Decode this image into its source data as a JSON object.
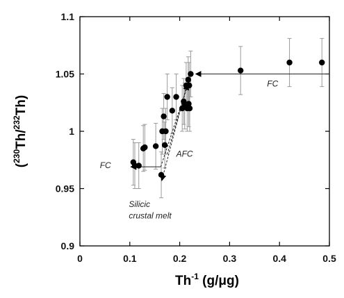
{
  "chart_data": {
    "type": "scatter",
    "title": "",
    "xlabel": {
      "main": "Th",
      "sup": "-1",
      "unit": " (g/μg)"
    },
    "ylabel": {
      "open": "(",
      "sup1": "230",
      "mid": "Th/",
      "sup2": "232",
      "end": "Th)"
    },
    "xlim": [
      0,
      0.5
    ],
    "ylim": [
      0.9,
      1.1
    ],
    "xticks": [
      {
        "value": 0,
        "label": "0"
      },
      {
        "value": 0.1,
        "label": "0.1"
      },
      {
        "value": 0.2,
        "label": "0.2"
      },
      {
        "value": 0.3,
        "label": "0.3"
      },
      {
        "value": 0.4,
        "label": "0.4"
      },
      {
        "value": 0.5,
        "label": "0.5"
      }
    ],
    "yticks": [
      {
        "value": 0.9,
        "label": "0.9"
      },
      {
        "value": 0.95,
        "label": "0.95"
      },
      {
        "value": 1.0,
        "label": "1"
      },
      {
        "value": 1.05,
        "label": "1.05"
      },
      {
        "value": 1.1,
        "label": "1.1"
      }
    ],
    "grid": false,
    "points": [
      {
        "x": 0.107,
        "y": 0.973,
        "err": 0.02
      },
      {
        "x": 0.11,
        "y": 0.97,
        "err": 0.02
      },
      {
        "x": 0.118,
        "y": 0.97,
        "err": 0.02
      },
      {
        "x": 0.127,
        "y": 0.985,
        "err": 0.02
      },
      {
        "x": 0.13,
        "y": 0.986,
        "err": 0.02
      },
      {
        "x": 0.152,
        "y": 0.987,
        "err": 0.02
      },
      {
        "x": 0.163,
        "y": 0.962,
        "err": 0.02
      },
      {
        "x": 0.165,
        "y": 1.0,
        "err": 0.02
      },
      {
        "x": 0.168,
        "y": 1.013,
        "err": 0.02
      },
      {
        "x": 0.17,
        "y": 0.988,
        "err": 0.02
      },
      {
        "x": 0.172,
        "y": 1.0,
        "err": 0.02
      },
      {
        "x": 0.175,
        "y": 1.03,
        "err": 0.02
      },
      {
        "x": 0.185,
        "y": 1.018,
        "err": 0.02
      },
      {
        "x": 0.193,
        "y": 1.03,
        "err": 0.02
      },
      {
        "x": 0.205,
        "y": 1.02,
        "err": 0.02
      },
      {
        "x": 0.208,
        "y": 1.026,
        "err": 0.02
      },
      {
        "x": 0.21,
        "y": 1.022,
        "err": 0.02
      },
      {
        "x": 0.213,
        "y": 1.04,
        "err": 0.02
      },
      {
        "x": 0.215,
        "y": 1.02,
        "err": 0.02
      },
      {
        "x": 0.217,
        "y": 1.045,
        "err": 0.02
      },
      {
        "x": 0.218,
        "y": 1.024,
        "err": 0.02
      },
      {
        "x": 0.219,
        "y": 1.04,
        "err": 0.02
      },
      {
        "x": 0.22,
        "y": 1.02,
        "err": 0.02
      },
      {
        "x": 0.222,
        "y": 1.05,
        "err": 0.02
      },
      {
        "x": 0.322,
        "y": 1.053,
        "err": 0.021
      },
      {
        "x": 0.42,
        "y": 1.06,
        "err": 0.021
      },
      {
        "x": 0.485,
        "y": 1.06,
        "err": 0.021
      }
    ],
    "lines": [
      {
        "id": "fc-upper",
        "from": [
          0.5,
          1.05
        ],
        "to": [
          0.232,
          1.05
        ],
        "arrow": true,
        "dashed": false
      },
      {
        "id": "fc-lower",
        "from": [
          0.162,
          0.969
        ],
        "to": [
          0.102,
          0.969
        ],
        "arrow": true,
        "dashed": false
      },
      {
        "id": "afc-right",
        "from": [
          0.162,
          0.969
        ],
        "to": [
          0.218,
          1.043
        ],
        "arrow": true,
        "dashed": true
      },
      {
        "id": "afc-mid",
        "from": [
          0.175,
          0.98
        ],
        "to": [
          0.216,
          1.041
        ],
        "arrow": true,
        "dashed": true
      },
      {
        "id": "afc-down",
        "from": [
          0.219,
          1.048
        ],
        "to": [
          0.164,
          0.957
        ],
        "arrow": true,
        "dashed": true
      }
    ],
    "annotations": [
      {
        "id": "fc-upper-label",
        "text": "FC",
        "x": 0.375,
        "y": 1.039
      },
      {
        "id": "fc-lower-label",
        "text": "FC",
        "x": 0.04,
        "y": 0.968
      },
      {
        "id": "afc-label",
        "text": "AFC",
        "x": 0.193,
        "y": 0.978
      },
      {
        "id": "silicic-label",
        "text": "Silicic",
        "x": 0.098,
        "y": 0.934
      },
      {
        "id": "crustal-label",
        "text": "crustal melt",
        "x": 0.098,
        "y": 0.924
      }
    ],
    "colors": {
      "markers": "#000000",
      "errorbars": "#9a9a9a",
      "lines": "#222222"
    }
  }
}
